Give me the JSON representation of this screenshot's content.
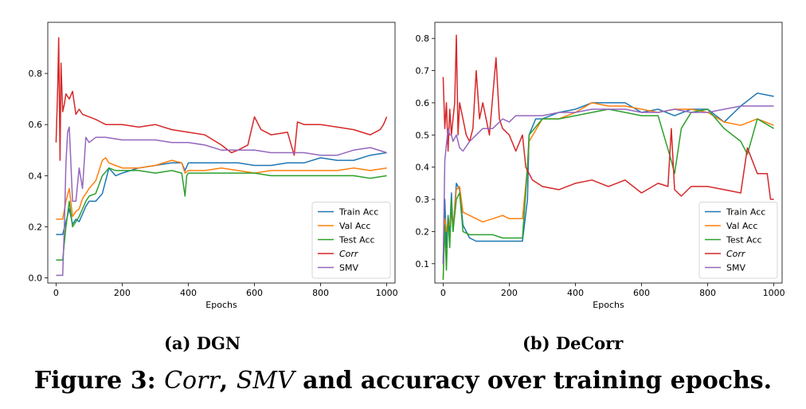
{
  "chart_data": [
    {
      "type": "line",
      "xlabel": "Epochs",
      "ylabel": "",
      "xlim": [
        -25,
        1025
      ],
      "ylim": [
        -0.02,
        1.0
      ],
      "xticks": [
        0,
        200,
        400,
        600,
        800,
        1000
      ],
      "yticks": [
        0.0,
        0.2,
        0.4,
        0.6,
        0.8
      ],
      "ytick_labels": [
        "0.0",
        "0.2",
        "0.4",
        "0.6",
        "0.8"
      ],
      "grid": false,
      "legend_position": "lower-right",
      "series": [
        {
          "name": "Train Acc",
          "color": "#1f77b4",
          "italic": false,
          "x": [
            0,
            10,
            20,
            30,
            40,
            50,
            60,
            70,
            80,
            90,
            100,
            120,
            140,
            160,
            180,
            200,
            250,
            300,
            350,
            380,
            390,
            400,
            450,
            500,
            550,
            600,
            650,
            700,
            750,
            800,
            850,
            900,
            950,
            1000
          ],
          "y": [
            0.17,
            0.17,
            0.17,
            0.22,
            0.27,
            0.21,
            0.23,
            0.22,
            0.25,
            0.28,
            0.3,
            0.3,
            0.33,
            0.43,
            0.4,
            0.41,
            0.43,
            0.44,
            0.45,
            0.45,
            0.42,
            0.45,
            0.45,
            0.45,
            0.45,
            0.44,
            0.44,
            0.45,
            0.45,
            0.47,
            0.46,
            0.46,
            0.48,
            0.49
          ]
        },
        {
          "name": "Val Acc",
          "color": "#ff7f0e",
          "italic": false,
          "x": [
            0,
            10,
            20,
            30,
            40,
            50,
            60,
            70,
            80,
            90,
            100,
            120,
            140,
            150,
            160,
            180,
            200,
            250,
            300,
            350,
            380,
            390,
            400,
            450,
            500,
            550,
            600,
            650,
            700,
            750,
            800,
            850,
            900,
            950,
            1000
          ],
          "y": [
            0.23,
            0.23,
            0.23,
            0.3,
            0.35,
            0.24,
            0.26,
            0.27,
            0.31,
            0.33,
            0.35,
            0.38,
            0.46,
            0.47,
            0.45,
            0.44,
            0.43,
            0.43,
            0.44,
            0.46,
            0.45,
            0.41,
            0.42,
            0.42,
            0.43,
            0.42,
            0.41,
            0.42,
            0.42,
            0.42,
            0.42,
            0.42,
            0.43,
            0.42,
            0.43
          ]
        },
        {
          "name": "Test Acc",
          "color": "#2ca02c",
          "italic": false,
          "x": [
            0,
            10,
            20,
            30,
            40,
            50,
            60,
            70,
            80,
            90,
            100,
            120,
            140,
            160,
            180,
            200,
            250,
            300,
            350,
            380,
            390,
            395,
            400,
            450,
            500,
            550,
            600,
            650,
            700,
            750,
            800,
            850,
            900,
            950,
            1000
          ],
          "y": [
            0.07,
            0.07,
            0.07,
            0.2,
            0.3,
            0.2,
            0.22,
            0.24,
            0.27,
            0.3,
            0.32,
            0.33,
            0.4,
            0.43,
            0.42,
            0.42,
            0.42,
            0.41,
            0.42,
            0.41,
            0.32,
            0.4,
            0.41,
            0.41,
            0.41,
            0.41,
            0.41,
            0.4,
            0.4,
            0.4,
            0.4,
            0.4,
            0.4,
            0.39,
            0.4
          ]
        },
        {
          "name": "Corr",
          "color": "#d62728",
          "italic": true,
          "x": [
            0,
            5,
            8,
            12,
            15,
            20,
            25,
            30,
            40,
            50,
            60,
            70,
            80,
            100,
            120,
            150,
            200,
            250,
            300,
            350,
            400,
            450,
            500,
            530,
            550,
            580,
            600,
            620,
            650,
            700,
            720,
            730,
            750,
            800,
            850,
            900,
            950,
            980,
            990,
            1000
          ],
          "y": [
            0.53,
            0.75,
            0.94,
            0.46,
            0.84,
            0.65,
            0.68,
            0.72,
            0.7,
            0.73,
            0.64,
            0.66,
            0.64,
            0.63,
            0.62,
            0.6,
            0.6,
            0.59,
            0.6,
            0.58,
            0.57,
            0.56,
            0.52,
            0.49,
            0.5,
            0.52,
            0.63,
            0.58,
            0.56,
            0.57,
            0.48,
            0.61,
            0.6,
            0.6,
            0.59,
            0.58,
            0.56,
            0.58,
            0.6,
            0.63
          ]
        },
        {
          "name": "SMV",
          "color": "#9467bd",
          "italic": false,
          "x": [
            0,
            10,
            20,
            25,
            30,
            35,
            40,
            50,
            60,
            70,
            80,
            90,
            100,
            120,
            150,
            200,
            250,
            300,
            350,
            400,
            450,
            500,
            550,
            600,
            650,
            700,
            750,
            800,
            850,
            900,
            950,
            1000
          ],
          "y": [
            0.01,
            0.01,
            0.01,
            0.2,
            0.45,
            0.57,
            0.59,
            0.3,
            0.3,
            0.43,
            0.35,
            0.55,
            0.53,
            0.55,
            0.55,
            0.54,
            0.54,
            0.54,
            0.53,
            0.53,
            0.52,
            0.5,
            0.5,
            0.5,
            0.49,
            0.49,
            0.49,
            0.48,
            0.48,
            0.5,
            0.51,
            0.49
          ]
        }
      ]
    },
    {
      "type": "line",
      "xlabel": "Epochs",
      "ylabel": "",
      "xlim": [
        -25,
        1025
      ],
      "ylim": [
        0.04,
        0.85
      ],
      "xticks": [
        0,
        200,
        400,
        600,
        800,
        1000
      ],
      "yticks": [
        0.1,
        0.2,
        0.3,
        0.4,
        0.5,
        0.6,
        0.7,
        0.8
      ],
      "ytick_labels": [
        "0.1",
        "0.2",
        "0.3",
        "0.4",
        "0.5",
        "0.6",
        "0.7",
        "0.8"
      ],
      "grid": false,
      "legend_position": "lower-right",
      "series": [
        {
          "name": "Train Acc",
          "color": "#1f77b4",
          "italic": false,
          "x": [
            0,
            5,
            10,
            15,
            20,
            25,
            30,
            40,
            50,
            60,
            70,
            80,
            100,
            120,
            150,
            180,
            200,
            240,
            255,
            260,
            280,
            300,
            350,
            400,
            450,
            500,
            550,
            600,
            650,
            700,
            750,
            800,
            850,
            900,
            950,
            1000
          ],
          "y": [
            0.1,
            0.3,
            0.15,
            0.25,
            0.2,
            0.32,
            0.2,
            0.35,
            0.33,
            0.22,
            0.2,
            0.18,
            0.17,
            0.17,
            0.17,
            0.17,
            0.17,
            0.17,
            0.3,
            0.5,
            0.55,
            0.55,
            0.57,
            0.58,
            0.6,
            0.6,
            0.6,
            0.57,
            0.58,
            0.56,
            0.58,
            0.58,
            0.54,
            0.59,
            0.63,
            0.62
          ]
        },
        {
          "name": "Val Acc",
          "color": "#ff7f0e",
          "italic": false,
          "x": [
            0,
            5,
            10,
            15,
            20,
            25,
            30,
            40,
            50,
            60,
            80,
            100,
            120,
            150,
            180,
            200,
            240,
            255,
            260,
            300,
            350,
            400,
            450,
            500,
            550,
            600,
            650,
            700,
            750,
            800,
            850,
            900,
            950,
            1000
          ],
          "y": [
            0.05,
            0.24,
            0.2,
            0.23,
            0.22,
            0.26,
            0.21,
            0.33,
            0.34,
            0.26,
            0.25,
            0.24,
            0.23,
            0.24,
            0.25,
            0.24,
            0.24,
            0.4,
            0.48,
            0.55,
            0.55,
            0.57,
            0.6,
            0.59,
            0.59,
            0.58,
            0.57,
            0.58,
            0.58,
            0.57,
            0.54,
            0.53,
            0.55,
            0.53
          ]
        },
        {
          "name": "Test Acc",
          "color": "#2ca02c",
          "italic": false,
          "x": [
            0,
            5,
            10,
            15,
            20,
            25,
            30,
            40,
            50,
            60,
            80,
            100,
            120,
            150,
            180,
            200,
            240,
            255,
            260,
            300,
            350,
            400,
            450,
            500,
            550,
            600,
            650,
            690,
            700,
            710,
            720,
            750,
            800,
            850,
            900,
            920,
            950,
            1000
          ],
          "y": [
            0.05,
            0.22,
            0.08,
            0.25,
            0.15,
            0.3,
            0.2,
            0.3,
            0.32,
            0.2,
            0.19,
            0.19,
            0.19,
            0.19,
            0.18,
            0.18,
            0.18,
            0.4,
            0.5,
            0.55,
            0.55,
            0.56,
            0.57,
            0.58,
            0.57,
            0.56,
            0.56,
            0.42,
            0.38,
            0.45,
            0.52,
            0.57,
            0.58,
            0.52,
            0.48,
            0.44,
            0.55,
            0.52
          ]
        },
        {
          "name": "Corr",
          "color": "#d62728",
          "italic": true,
          "x": [
            0,
            5,
            10,
            15,
            20,
            25,
            30,
            35,
            40,
            45,
            50,
            60,
            70,
            80,
            90,
            100,
            110,
            120,
            140,
            160,
            170,
            180,
            200,
            220,
            240,
            250,
            260,
            270,
            300,
            350,
            400,
            450,
            500,
            550,
            600,
            650,
            680,
            690,
            700,
            710,
            720,
            750,
            800,
            850,
            900,
            920,
            950,
            980,
            990,
            1000
          ],
          "y": [
            0.68,
            0.52,
            0.6,
            0.45,
            0.58,
            0.5,
            0.55,
            0.6,
            0.81,
            0.5,
            0.6,
            0.55,
            0.5,
            0.48,
            0.52,
            0.7,
            0.55,
            0.6,
            0.5,
            0.74,
            0.55,
            0.52,
            0.5,
            0.45,
            0.5,
            0.4,
            0.38,
            0.36,
            0.34,
            0.33,
            0.35,
            0.36,
            0.34,
            0.36,
            0.32,
            0.35,
            0.34,
            0.52,
            0.33,
            0.32,
            0.31,
            0.34,
            0.34,
            0.33,
            0.32,
            0.46,
            0.38,
            0.38,
            0.3,
            0.3
          ]
        },
        {
          "name": "SMV",
          "color": "#9467bd",
          "italic": false,
          "x": [
            0,
            5,
            10,
            15,
            20,
            25,
            30,
            40,
            50,
            60,
            80,
            100,
            120,
            150,
            180,
            200,
            220,
            250,
            300,
            350,
            400,
            450,
            500,
            550,
            600,
            650,
            700,
            750,
            800,
            850,
            900,
            950,
            1000
          ],
          "y": [
            0.1,
            0.42,
            0.47,
            0.52,
            0.5,
            0.5,
            0.48,
            0.5,
            0.46,
            0.45,
            0.48,
            0.5,
            0.52,
            0.52,
            0.55,
            0.54,
            0.56,
            0.56,
            0.56,
            0.57,
            0.57,
            0.58,
            0.58,
            0.58,
            0.57,
            0.57,
            0.58,
            0.57,
            0.57,
            0.58,
            0.59,
            0.59,
            0.59
          ]
        }
      ]
    }
  ],
  "subcaptions": {
    "a": "(a) DGN",
    "b": "(b) DeCorr"
  },
  "caption": {
    "prefix": "Figure 3: ",
    "corr": "Corr",
    "comma": ", ",
    "smv": "SMV",
    "rest": " and accuracy over training epochs."
  }
}
